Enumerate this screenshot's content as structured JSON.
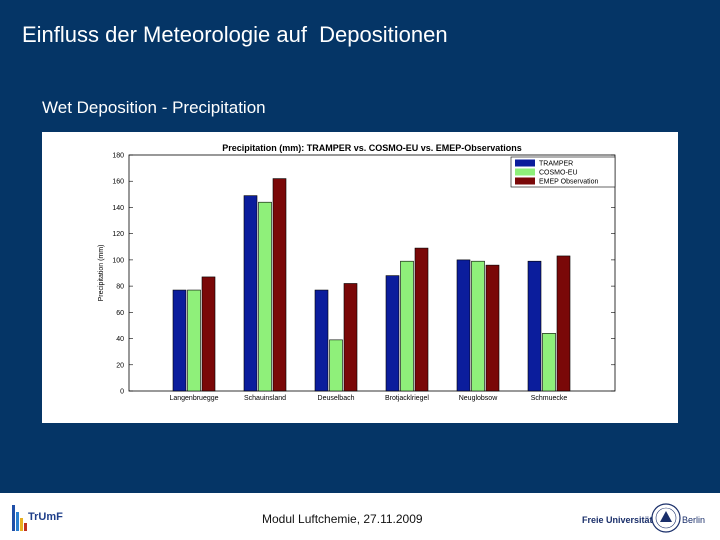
{
  "slide": {
    "title": "Einfluss der Meteorologie auf  Depositionen",
    "section_title": "Wet Deposition - Precipitation",
    "footer_text": "Modul Luftchemie, 27.11.2009",
    "left_logo_text": "TrUmF",
    "right_logo_text_left": "Freie Universität",
    "right_logo_text_right": "Berlin"
  },
  "colors": {
    "panel_bg": "#053566",
    "tramper": "#0b1d9c",
    "cosmo": "#8ff07a",
    "emep": "#7a0808"
  },
  "chart_data": {
    "type": "bar",
    "title": "Precipitation (mm): TRAMPER vs. COSMO-EU vs. EMEP-Observations",
    "xlabel": "",
    "ylabel": "Precipitation (mm)",
    "ylim": [
      0,
      180
    ],
    "yticks": [
      0,
      20,
      40,
      60,
      80,
      100,
      120,
      140,
      160,
      180
    ],
    "grid": false,
    "legend_position": "top-right",
    "categories": [
      "Langenbruegge",
      "Schauinsland",
      "Deuselbach",
      "Brotjacklriegel",
      "Neuglobsow",
      "Schmuecke"
    ],
    "series": [
      {
        "name": "TRAMPER",
        "color": "#0b1d9c",
        "values": [
          77,
          149,
          77,
          88,
          100,
          99
        ]
      },
      {
        "name": "COSMO-EU",
        "color": "#8ff07a",
        "values": [
          77,
          144,
          39,
          99,
          99,
          44
        ]
      },
      {
        "name": "EMEP Observation",
        "color": "#7a0808",
        "values": [
          87,
          162,
          82,
          109,
          96,
          103
        ]
      }
    ]
  }
}
